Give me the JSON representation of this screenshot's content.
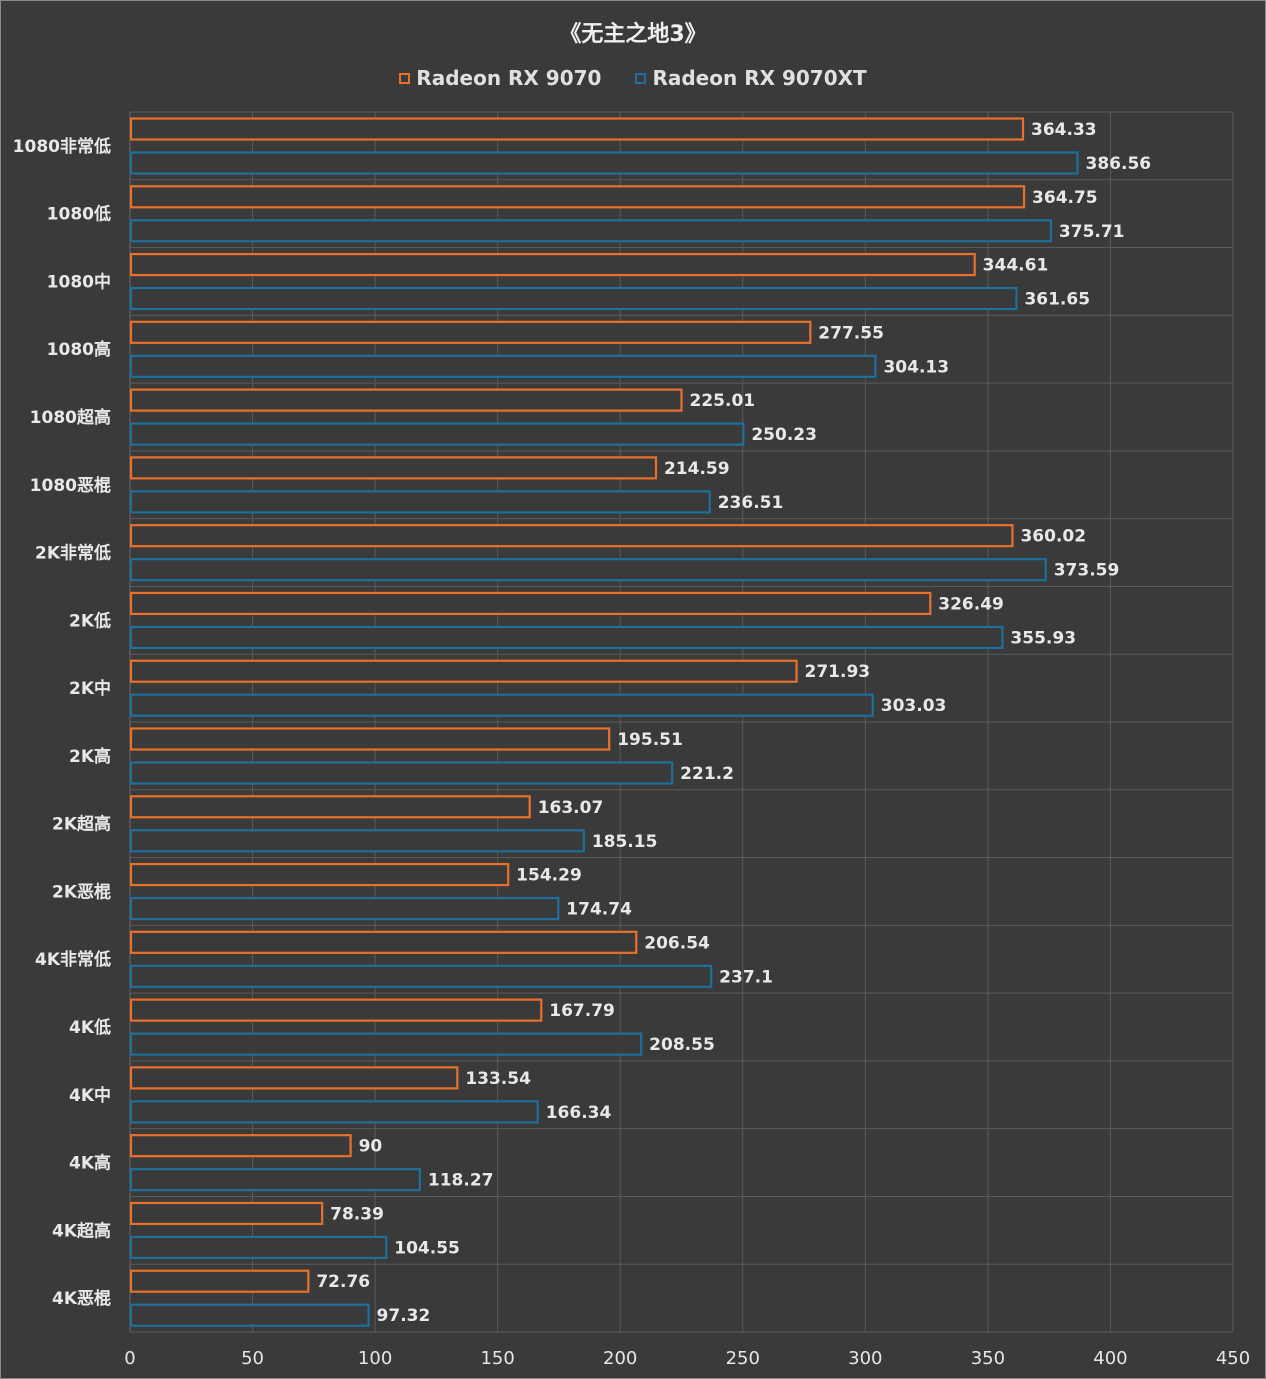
{
  "chart_data": {
    "type": "bar",
    "orientation": "horizontal",
    "title": "《无主之地3》",
    "categories": [
      "1080非常低",
      "1080低",
      "1080中",
      "1080高",
      "1080超高",
      "1080恶棍",
      "2K非常低",
      "2K低",
      "2K中",
      "2K高",
      "2K超高",
      "2K恶棍",
      "4K非常低",
      "4K低",
      "4K中",
      "4K高",
      "4K超高",
      "4K恶棍"
    ],
    "series": [
      {
        "name": "Radeon RX 9070",
        "color": "#e8702a",
        "values": [
          364.33,
          364.75,
          344.61,
          277.55,
          225.01,
          214.59,
          360.02,
          326.49,
          271.93,
          195.51,
          163.07,
          154.29,
          206.54,
          167.79,
          133.54,
          90,
          78.39,
          72.76
        ],
        "labels": [
          "364.33",
          "364.75",
          "344.61",
          "277.55",
          "225.01",
          "214.59",
          "360.02",
          "326.49",
          "271.93",
          "195.51",
          "163.07",
          "154.29",
          "206.54",
          "167.79",
          "133.54",
          "90",
          "78.39",
          "72.76"
        ]
      },
      {
        "name": "Radeon RX 9070XT",
        "color": "#1f6f9c",
        "values": [
          386.56,
          375.71,
          361.65,
          304.13,
          250.23,
          236.51,
          373.59,
          355.93,
          303.03,
          221.2,
          185.15,
          174.74,
          237.1,
          208.55,
          166.34,
          118.27,
          104.55,
          97.32
        ],
        "labels": [
          "386.56",
          "375.71",
          "361.65",
          "304.13",
          "250.23",
          "236.51",
          "373.59",
          "355.93",
          "303.03",
          "221.2",
          "185.15",
          "174.74",
          "237.1",
          "208.55",
          "166.34",
          "118.27",
          "104.55",
          "97.32"
        ]
      }
    ],
    "xlim": [
      0,
      450
    ],
    "xticks": [
      "0",
      "50",
      "100",
      "150",
      "200",
      "250",
      "300",
      "350",
      "400",
      "450"
    ],
    "grid": true,
    "legend_position": "top"
  }
}
